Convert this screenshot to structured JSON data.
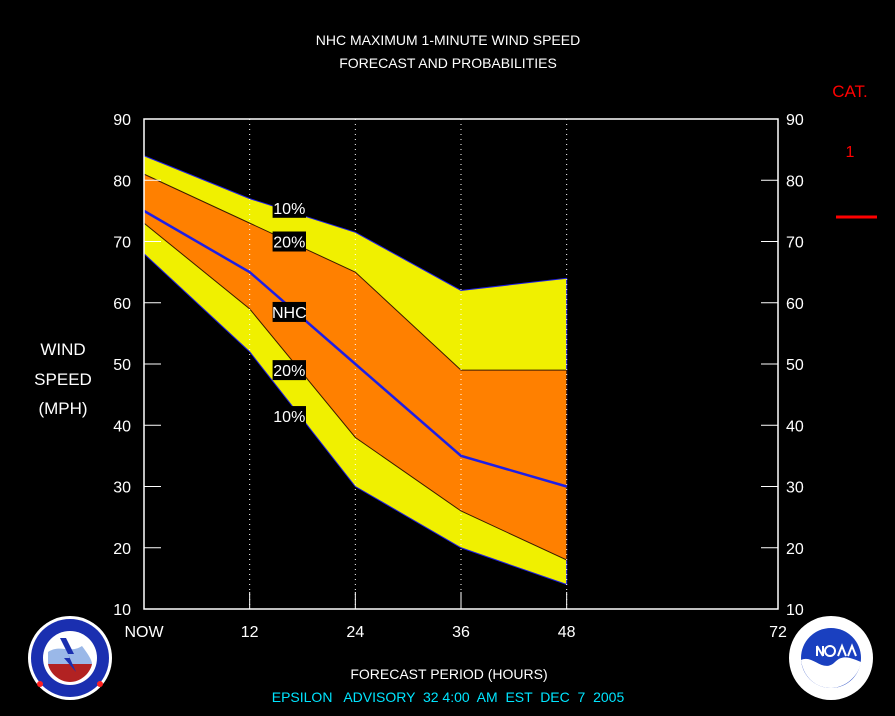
{
  "title_line1": "NHC MAXIMUM 1-MINUTE WIND SPEED",
  "title_line2": "FORECAST AND PROBABILITIES",
  "ylabel_lines": [
    "WIND",
    "SPEED",
    "(MPH)"
  ],
  "xlabel": "FORECAST PERIOD (HOURS)",
  "footer": "EPSILON   ADVISORY  32 4:00  AM  EST  DEC  7  2005",
  "category": {
    "label": "CAT.",
    "value": "1"
  },
  "logos": {
    "left": "nws-logo",
    "right": "noaa-logo"
  },
  "colors": {
    "background": "#000000",
    "band_outer": "#f0f000",
    "band_inner": "#ff8000",
    "nhc_line": "#1e1ee6",
    "category_text": "#ff0000",
    "footer_text": "#00e5ff"
  },
  "chart_data": {
    "type": "area",
    "x_ticks": [
      0,
      12,
      24,
      36,
      48,
      72
    ],
    "x_tick_labels": [
      "NOW",
      "12",
      "24",
      "36",
      "48",
      "72"
    ],
    "xlim": [
      0,
      72
    ],
    "ylim": [
      10,
      90
    ],
    "y_ticks": [
      10,
      20,
      30,
      40,
      50,
      60,
      70,
      80,
      90
    ],
    "y_tick_labels": [
      "10",
      "20",
      "30",
      "40",
      "50",
      "60",
      "70",
      "80",
      "90"
    ],
    "grid": "vertical dotted at 12, 24, 36, 48",
    "bands": [
      {
        "label": "10%",
        "x": [
          0,
          12,
          24,
          36,
          48
        ],
        "upper": [
          84,
          77,
          71.5,
          62,
          64
        ],
        "lower": [
          68,
          52,
          30,
          20,
          14
        ]
      },
      {
        "label": "20%",
        "x": [
          0,
          12,
          24,
          36,
          48
        ],
        "upper": [
          81,
          73,
          65,
          49,
          49
        ],
        "lower": [
          73,
          59,
          38,
          26,
          18
        ]
      }
    ],
    "series": [
      {
        "name": "NHC",
        "x": [
          0,
          12,
          24,
          36,
          48
        ],
        "values": [
          75,
          65,
          50,
          35,
          30
        ]
      }
    ],
    "labels": [
      {
        "text": "10%",
        "x": 16.5,
        "y": 75.5
      },
      {
        "text": "20%",
        "x": 16.5,
        "y": 70
      },
      {
        "text": "NHC",
        "x": 16.5,
        "y": 58.5
      },
      {
        "text": "20%",
        "x": 16.5,
        "y": 49
      },
      {
        "text": "10%",
        "x": 16.5,
        "y": 41.5
      }
    ]
  }
}
